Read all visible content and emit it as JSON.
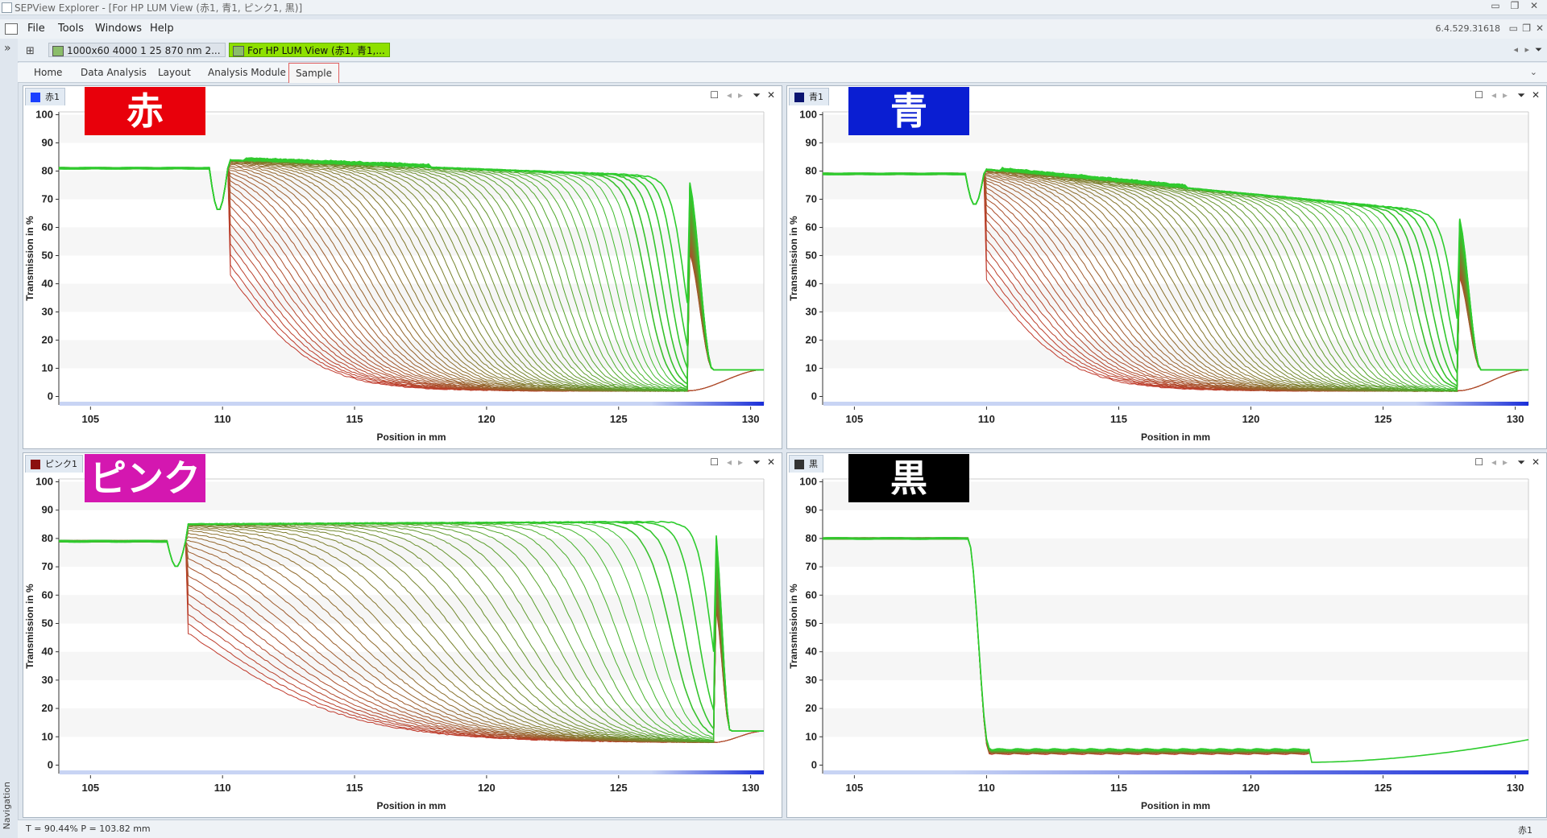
{
  "window": {
    "title": "SEPView Explorer - [For HP LUM View (赤1, 青1, ピンク1, 黒)]",
    "controls": [
      "minimize-icon",
      "restore-icon",
      "close-icon"
    ]
  },
  "menu": {
    "items": [
      "File",
      "Tools",
      "Windows",
      "Help"
    ],
    "version": "6.4.529.31618"
  },
  "docs": {
    "tabs": [
      {
        "label": "1000x60 4000 1 25 870 nm 2...",
        "active": false
      },
      {
        "label": "For HP LUM View (赤1, 青1,...",
        "active": true,
        "color": "#8ee000"
      }
    ]
  },
  "ribbon": {
    "tabs": [
      "Home",
      "Data Analysis",
      "Layout",
      "Analysis Module",
      "Sample"
    ],
    "selected": "Sample"
  },
  "navigation": {
    "label": "Navigation"
  },
  "status": {
    "left": "T = 90.44%  P = 103.82 mm",
    "right": "赤1"
  },
  "panels": [
    {
      "id": "red",
      "tab": "赤1",
      "tab_swatch": "#1a3fff",
      "label": "赤",
      "label_color": "#e8000b",
      "chart_data": {
        "type": "line",
        "title": "",
        "xlabel": "Position in mm",
        "ylabel": "Transmission in %",
        "xlim": [
          103.8,
          130.5
        ],
        "ylim": [
          -3,
          101
        ],
        "xticks": [
          105,
          110,
          115,
          120,
          125,
          130
        ],
        "yticks": [
          0,
          10,
          20,
          30,
          40,
          50,
          60,
          70,
          80,
          90,
          100
        ],
        "grid": "horizontal bands",
        "color_scale": [
          "#c0392b",
          "#2ecc2e"
        ],
        "profile_count": 60,
        "meniscus_mm": 109.8,
        "bottom_mm": 127.6,
        "start_level_pct": 81,
        "plateau_start_pct": 84,
        "plateau_end_pct": 78,
        "min_level_pct": 2,
        "end_level_pct": 9.5,
        "dip_pct": 66
      }
    },
    {
      "id": "blue",
      "tab": "青1",
      "tab_swatch": "#0a1470",
      "label": "青",
      "label_color": "#0a1ed2",
      "chart_data": {
        "type": "line",
        "title": "",
        "xlabel": "Position in mm",
        "ylabel": "Transmission in %",
        "xlim": [
          103.8,
          130.5
        ],
        "ylim": [
          -3,
          101
        ],
        "xticks": [
          105,
          110,
          115,
          120,
          125,
          130
        ],
        "yticks": [
          0,
          10,
          20,
          30,
          40,
          50,
          60,
          70,
          80,
          90,
          100
        ],
        "grid": "horizontal bands",
        "color_scale": [
          "#c0392b",
          "#2ecc2e"
        ],
        "profile_count": 60,
        "meniscus_mm": 109.5,
        "bottom_mm": 127.8,
        "start_level_pct": 79,
        "plateau_start_pct": 81,
        "plateau_end_pct": 65,
        "min_level_pct": 2,
        "end_level_pct": 9.5,
        "dip_pct": 68
      }
    },
    {
      "id": "pink",
      "tab": "ピンク1",
      "tab_swatch": "#8b1010",
      "label": "ピンク",
      "label_color": "#d417b0",
      "chart_data": {
        "type": "line",
        "title": "",
        "xlabel": "Position in mm",
        "ylabel": "Transmission in %",
        "xlim": [
          103.8,
          130.5
        ],
        "ylim": [
          -3,
          101
        ],
        "xticks": [
          105,
          110,
          115,
          120,
          125,
          130
        ],
        "yticks": [
          0,
          10,
          20,
          30,
          40,
          50,
          60,
          70,
          80,
          90,
          100
        ],
        "grid": "horizontal bands",
        "color_scale": [
          "#c0392b",
          "#2ecc2e"
        ],
        "profile_count": 40,
        "meniscus_mm": 108.2,
        "bottom_mm": 128.6,
        "start_level_pct": 79,
        "plateau_start_pct": 85,
        "plateau_end_pct": 86,
        "min_level_pct": 8,
        "end_level_pct": 12,
        "dip_pct": 70
      }
    },
    {
      "id": "black",
      "tab": "黒",
      "tab_swatch": "#333333",
      "label": "黒",
      "label_color": "#000000",
      "chart_data": {
        "type": "line",
        "title": "",
        "xlabel": "Position in mm",
        "ylabel": "Transmission in %",
        "xlim": [
          103.8,
          130.5
        ],
        "ylim": [
          -3,
          101
        ],
        "xticks": [
          105,
          110,
          115,
          120,
          125,
          130
        ],
        "yticks": [
          0,
          10,
          20,
          30,
          40,
          50,
          60,
          70,
          80,
          90,
          100
        ],
        "grid": "horizontal bands",
        "color_scale": [
          "#c0392b",
          "#2ecc2e"
        ],
        "profile_count": 20,
        "drop_mm": 109.3,
        "low_level_pct": 4,
        "tail_start_mm": 122.2,
        "tail_level_pct": 1,
        "end_level_pct": 9,
        "start_level_pct": 80
      }
    }
  ]
}
